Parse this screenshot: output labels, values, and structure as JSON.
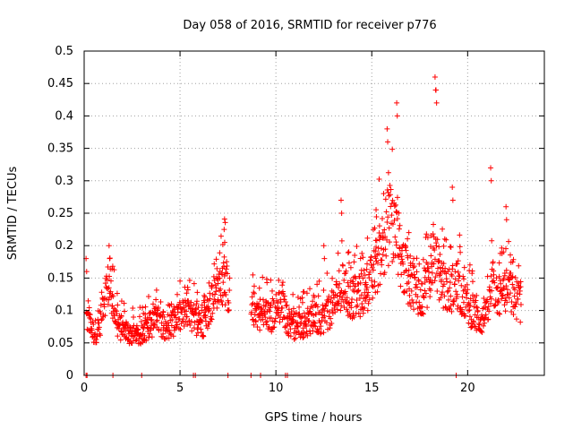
{
  "chart_data": {
    "type": "scatter",
    "title": "Day 058 of 2016, SRMTID for receiver p776",
    "xlabel": "GPS time / hours",
    "ylabel": "SRMTID / TECUs",
    "xlim": [
      0,
      24
    ],
    "ylim": [
      0,
      0.5
    ],
    "x_ticks": [
      0,
      5,
      10,
      15,
      20
    ],
    "x_tick_labels": [
      "0",
      "5",
      "10",
      "15",
      "20"
    ],
    "y_ticks": [
      0,
      0.05,
      0.1,
      0.15,
      0.2,
      0.25,
      0.3,
      0.35,
      0.4,
      0.45,
      0.5
    ],
    "y_tick_labels": [
      "0",
      "0.05",
      "0.1",
      "0.15",
      "0.2",
      "0.25",
      "0.3",
      "0.35",
      "0.4",
      "0.45",
      "0.5"
    ],
    "grid": true,
    "marker": "+",
    "colors": {
      "marker": "#ff0000",
      "frame": "#000000",
      "grid": "#a0a0a0"
    },
    "zero_points_x": [
      0.1,
      0.15,
      1.5,
      3.0,
      5.7,
      5.8,
      7.5,
      8.7,
      9.2,
      10.5,
      10.6,
      19.4
    ],
    "trend": [
      [
        0.1,
        0.09
      ],
      [
        0.5,
        0.065
      ],
      [
        0.8,
        0.075
      ],
      [
        1.0,
        0.12
      ],
      [
        1.3,
        0.14
      ],
      [
        1.5,
        0.11
      ],
      [
        1.8,
        0.075
      ],
      [
        2.3,
        0.065
      ],
      [
        2.8,
        0.06
      ],
      [
        3.3,
        0.075
      ],
      [
        3.8,
        0.085
      ],
      [
        4.3,
        0.075
      ],
      [
        4.8,
        0.085
      ],
      [
        5.3,
        0.095
      ],
      [
        5.8,
        0.085
      ],
      [
        6.2,
        0.08
      ],
      [
        6.6,
        0.11
      ],
      [
        7.0,
        0.13
      ],
      [
        7.3,
        0.155
      ],
      [
        7.6,
        0.12
      ],
      [
        8.0,
        null
      ],
      [
        8.5,
        null
      ],
      [
        8.7,
        0.105
      ],
      [
        9.2,
        0.095
      ],
      [
        9.7,
        0.09
      ],
      [
        10.3,
        0.11
      ],
      [
        10.6,
        0.085
      ],
      [
        11.0,
        0.075
      ],
      [
        11.5,
        0.08
      ],
      [
        12.0,
        0.085
      ],
      [
        12.5,
        0.09
      ],
      [
        13.0,
        0.105
      ],
      [
        13.4,
        0.14
      ],
      [
        13.8,
        0.12
      ],
      [
        14.3,
        0.12
      ],
      [
        14.8,
        0.135
      ],
      [
        15.2,
        0.16
      ],
      [
        15.6,
        0.21
      ],
      [
        16.0,
        0.24
      ],
      [
        16.4,
        0.2
      ],
      [
        16.8,
        0.15
      ],
      [
        17.2,
        0.14
      ],
      [
        17.6,
        0.12
      ],
      [
        18.0,
        0.15
      ],
      [
        18.3,
        0.19
      ],
      [
        18.6,
        0.14
      ],
      [
        19.0,
        0.13
      ],
      [
        19.4,
        0.14
      ],
      [
        19.8,
        0.12
      ],
      [
        20.2,
        0.1
      ],
      [
        20.6,
        0.085
      ],
      [
        21.0,
        0.09
      ],
      [
        21.3,
        0.14
      ],
      [
        21.7,
        0.12
      ],
      [
        22.1,
        0.13
      ],
      [
        22.5,
        0.12
      ],
      [
        22.8,
        0.11
      ]
    ],
    "notable_peaks": [
      {
        "x": 0.1,
        "y": 0.18
      },
      {
        "x": 1.3,
        "y": 0.2
      },
      {
        "x": 7.3,
        "y": 0.225
      },
      {
        "x": 12.5,
        "y": 0.2
      },
      {
        "x": 13.4,
        "y": 0.27
      },
      {
        "x": 15.8,
        "y": 0.38
      },
      {
        "x": 16.3,
        "y": 0.42
      },
      {
        "x": 18.3,
        "y": 0.46
      },
      {
        "x": 18.35,
        "y": 0.44
      },
      {
        "x": 19.2,
        "y": 0.29
      },
      {
        "x": 21.2,
        "y": 0.32
      },
      {
        "x": 22.0,
        "y": 0.26
      }
    ]
  }
}
